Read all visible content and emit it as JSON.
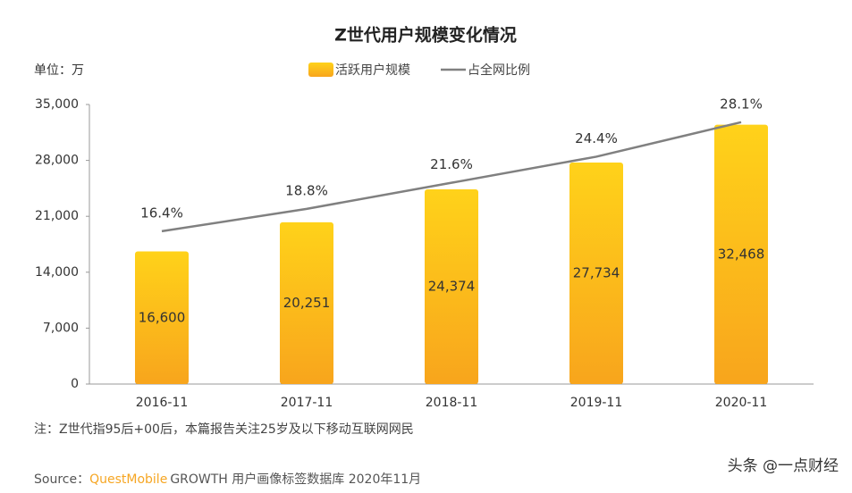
{
  "chart_data": {
    "type": "bar",
    "title": "Z世代用户规模变化情况",
    "unit_label": "单位：万",
    "categories": [
      "2016-11",
      "2017-11",
      "2018-11",
      "2019-11",
      "2020-11"
    ],
    "series": [
      {
        "name": "活跃用户规模",
        "type": "bar",
        "color": "#fbb91e",
        "values": [
          16600,
          20251,
          24374,
          27734,
          32468
        ],
        "value_labels": [
          "16,600",
          "20,251",
          "24,374",
          "27,734",
          "32,468"
        ]
      },
      {
        "name": "占全网比例",
        "type": "line",
        "axis": "y2",
        "color": "#808080",
        "values": [
          16.4,
          18.8,
          21.6,
          24.4,
          28.1
        ],
        "value_labels": [
          "16.4%",
          "18.8%",
          "21.6%",
          "24.4%",
          "28.1%"
        ]
      }
    ],
    "ylim": [
      0,
      35000
    ],
    "yticks": [
      0,
      {
        "value": 7000,
        "label": "7,000"
      },
      {
        "value": 14000,
        "label": "14,000"
      },
      {
        "value": 21000,
        "label": "21,000"
      },
      {
        "value": 28000,
        "label": "28,000"
      },
      {
        "value": 35000,
        "label": "35,000"
      }
    ],
    "y2lim": [
      0,
      30
    ],
    "legend": "top",
    "note": "注：Z世代指95后+00后，本篇报告关注25岁及以下移动互联网网民",
    "source_prefix": "Source：",
    "source_brand": "QuestMobile",
    "source_suffix": "GROWTH 用户画像标签数据库 2020年11月",
    "watermark": "头条 @一点财经"
  }
}
